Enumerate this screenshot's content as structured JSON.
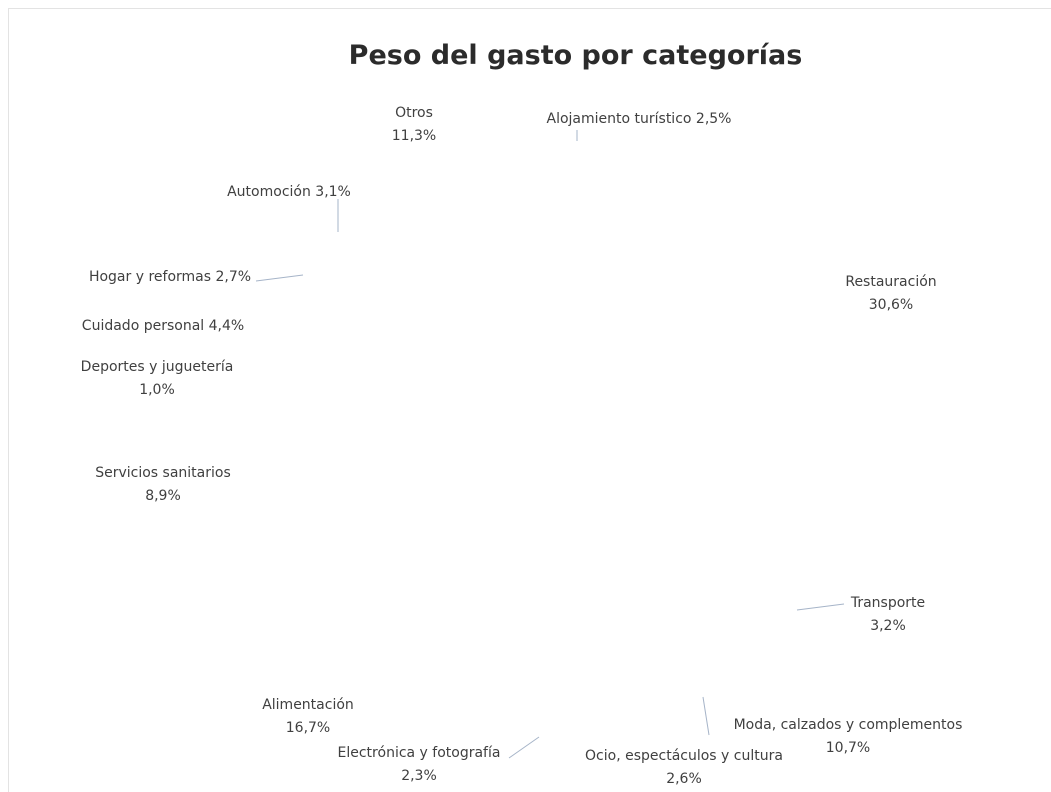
{
  "chart_data": {
    "type": "pie",
    "title": "Peso del gasto por categorías",
    "slices": [
      {
        "label": "Restauración",
        "value_label": "30,6%",
        "value": 30.6
      },
      {
        "label": "Transporte",
        "value_label": "3,2%",
        "value": 3.2
      },
      {
        "label": "Moda, calzados y complementos",
        "value_label": "10,7%",
        "value": 10.7
      },
      {
        "label": "Ocio, espectáculos y cultura",
        "value_label": "2,6%",
        "value": 2.6
      },
      {
        "label": "Electrónica y fotografía",
        "value_label": "2,3%",
        "value": 2.3
      },
      {
        "label": "Alimentación",
        "value_label": "16,7%",
        "value": 16.7
      },
      {
        "label": "Servicios sanitarios",
        "value_label": "8,9%",
        "value": 8.9
      },
      {
        "label": "Deportes y juguetería",
        "value_label": "1,0%",
        "value": 1.0
      },
      {
        "label": "Cuidado personal",
        "value_label": "4,4%",
        "value": 4.4
      },
      {
        "label": "Hogar y reformas",
        "value_label": "2,7%",
        "value": 2.7
      },
      {
        "label": "Automoción",
        "value_label": "3,1%",
        "value": 3.1
      },
      {
        "label": "Otros",
        "value_label": "11,3%",
        "value": 11.3
      },
      {
        "label": "Alojamiento turístico",
        "value_label": "2,5%",
        "value": 2.5
      }
    ]
  }
}
